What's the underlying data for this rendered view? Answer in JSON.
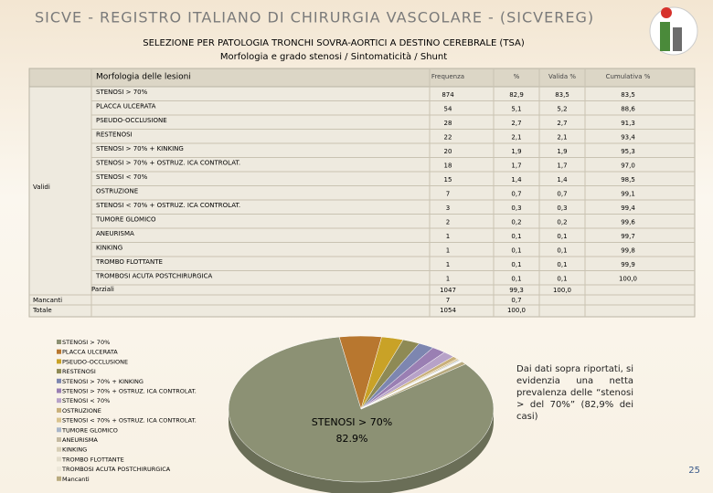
{
  "header": {
    "title": "SICVE - REGISTRO ITALIANO DI CHIRURGIA VASCOLARE - (SICVEREG)",
    "line1": "SELEZIONE PER PATOLOGIA TRONCHI SOVRA-AORTICI A DESTINO CEREBRALE (TSA)",
    "line2": "Morfologia e grado stenosi / Sintomaticità / Shunt"
  },
  "table": {
    "columns": [
      "Morfologia delle lesioni",
      "Frequenza",
      "%",
      "Valida %",
      "Cumulativa %"
    ],
    "validi_label": "Validi",
    "rows": [
      [
        "STENOSI > 70%",
        874,
        "82,9",
        "83,5",
        "83,5"
      ],
      [
        "PLACCA ULCERATA",
        54,
        "5,1",
        "5,2",
        "88,6"
      ],
      [
        "PSEUDO-OCCLUSIONE",
        28,
        "2,7",
        "2,7",
        "91,3"
      ],
      [
        "RESTENOSI",
        22,
        "2,1",
        "2,1",
        "93,4"
      ],
      [
        "STENOSI > 70% + KINKING",
        20,
        "1,9",
        "1,9",
        "95,3"
      ],
      [
        "STENOSI > 70% + OSTRUZ. ICA CONTROLAT.",
        18,
        "1,7",
        "1,7",
        "97,0"
      ],
      [
        "STENOSI < 70%",
        15,
        "1,4",
        "1,4",
        "98,5"
      ],
      [
        "OSTRUZIONE",
        7,
        "0,7",
        "0,7",
        "99,1"
      ],
      [
        "STENOSI < 70% + OSTRUZ. ICA CONTROLAT.",
        3,
        "0,3",
        "0,3",
        "99,4"
      ],
      [
        "TUMORE GLOMICO",
        2,
        "0,2",
        "0,2",
        "99,6"
      ],
      [
        "ANEURISMA",
        1,
        "0,1",
        "0,1",
        "99,7"
      ],
      [
        "KINKING",
        1,
        "0,1",
        "0,1",
        "99,8"
      ],
      [
        "TROMBO FLOTTANTE",
        1,
        "0,1",
        "0,1",
        "99,9"
      ],
      [
        "TROMBOSI ACUTA POSTCHIRURGICA",
        1,
        "0,1",
        "0,1",
        "100,0"
      ]
    ],
    "parziali": [
      "Parziali",
      1047,
      "99,3",
      "100,0"
    ],
    "mancanti": [
      "Mancanti",
      7,
      "0,7"
    ],
    "totale": [
      "Totale",
      1054,
      "100,0"
    ]
  },
  "pie": {
    "callout_name": "STENOSI > 70%",
    "callout_value": "82.9%",
    "colors": [
      "#8c9174",
      "#b8772f",
      "#c9a227",
      "#8e8a55",
      "#7d86b0",
      "#9a7fb3",
      "#b7a2c8",
      "#c9b07a",
      "#d9c38e",
      "#a9b6c9",
      "#c4b9a0",
      "#d6cdb4",
      "#e2dccb",
      "#ede8da",
      "#b9ab7f"
    ]
  },
  "note": "Dai dati sopra riportati, si evidenzia una netta prevalenza delle “stenosi > del 70%” (82,9% dei casi)",
  "page_number": "25"
}
